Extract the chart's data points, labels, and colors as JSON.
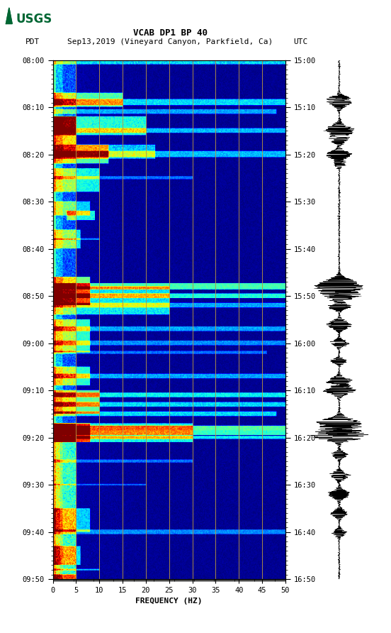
{
  "title_line1": "VCAB DP1 BP 40",
  "title_line2_left": "PDT",
  "title_line2_mid": "Sep13,2019 (Vineyard Canyon, Parkfield, Ca)",
  "title_line2_right": "UTC",
  "xlabel": "FREQUENCY (HZ)",
  "left_yticks": [
    "08:00",
    "08:10",
    "08:20",
    "08:30",
    "08:40",
    "08:50",
    "09:00",
    "09:10",
    "09:20",
    "09:30",
    "09:40",
    "09:50"
  ],
  "right_yticks": [
    "15:00",
    "15:10",
    "15:20",
    "15:30",
    "15:40",
    "15:50",
    "16:00",
    "16:10",
    "16:20",
    "16:30",
    "16:40",
    "16:50"
  ],
  "xticks": [
    0,
    5,
    10,
    15,
    20,
    25,
    30,
    35,
    40,
    45,
    50
  ],
  "freq_min": 0,
  "freq_max": 50,
  "n_time": 660,
  "n_freq": 340,
  "bg_color": "#ffffff",
  "vgrid_x": [
    5,
    10,
    15,
    20,
    25,
    30,
    35,
    40,
    45
  ],
  "vgrid_color": "#b8963e",
  "logo_color": "#006633",
  "colormap": "jet",
  "spec_bg": "#00008B"
}
